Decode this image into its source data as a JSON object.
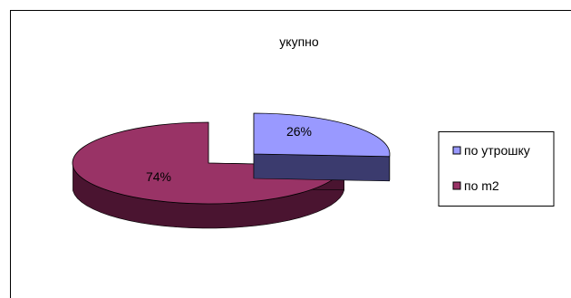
{
  "chart_data": {
    "type": "pie",
    "title": "укупно",
    "slices": [
      {
        "name": "по утрошку",
        "value": 26,
        "label": "26%",
        "top_color": "#9999ff",
        "side_color": "#3b3b6e"
      },
      {
        "name": "по m2",
        "value": 74,
        "label": "74%",
        "top_color": "#993366",
        "side_color": "#4a1430"
      }
    ],
    "legend_position": "right",
    "exploded": true
  }
}
